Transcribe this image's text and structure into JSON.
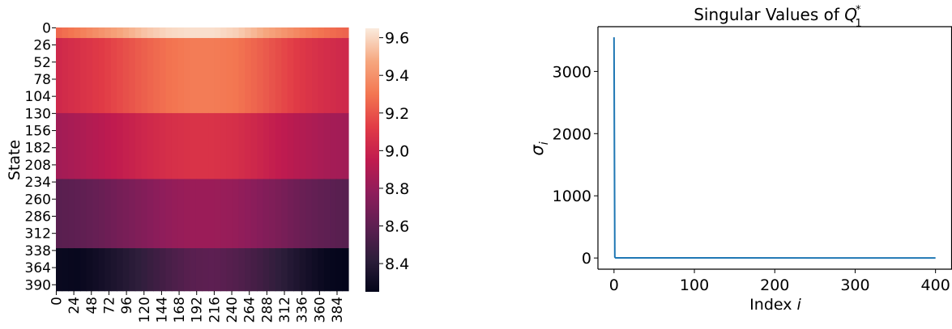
{
  "chart_data": [
    {
      "type": "heatmap",
      "ylabel": "State",
      "xlabel": "",
      "x_tick_labels": [
        "0",
        "24",
        "48",
        "72",
        "96",
        "120",
        "144",
        "168",
        "192",
        "216",
        "240",
        "264",
        "288",
        "312",
        "336",
        "360",
        "384"
      ],
      "y_tick_labels": [
        "0",
        "26",
        "52",
        "78",
        "104",
        "130",
        "156",
        "182",
        "208",
        "234",
        "260",
        "286",
        "312",
        "338",
        "364",
        "390"
      ],
      "n_rows": 400,
      "n_cols": 400,
      "row_bands": [
        {
          "start": 0,
          "end": 16,
          "profile": [
            9.25,
            9.32,
            9.4,
            9.48,
            9.55,
            9.6,
            9.62,
            9.62,
            9.58,
            9.5,
            9.42,
            9.34,
            9.28,
            9.24
          ]
        },
        {
          "start": 16,
          "end": 130,
          "profile": [
            9.02,
            9.07,
            9.12,
            9.18,
            9.24,
            9.29,
            9.32,
            9.32,
            9.3,
            9.24,
            9.17,
            9.1,
            9.05,
            9.02
          ]
        },
        {
          "start": 130,
          "end": 230,
          "profile": [
            8.84,
            8.88,
            8.92,
            8.97,
            9.02,
            9.06,
            9.08,
            9.08,
            9.06,
            9.01,
            8.95,
            8.9,
            8.86,
            8.84
          ]
        },
        {
          "start": 230,
          "end": 335,
          "profile": [
            8.58,
            8.6,
            8.64,
            8.69,
            8.74,
            8.79,
            8.82,
            8.82,
            8.8,
            8.75,
            8.7,
            8.64,
            8.6,
            8.57
          ]
        },
        {
          "start": 335,
          "end": 400,
          "profile": [
            8.28,
            8.27,
            8.32,
            8.38,
            8.45,
            8.52,
            8.58,
            8.6,
            8.56,
            8.5,
            8.42,
            8.34,
            8.27,
            8.25
          ]
        }
      ],
      "colorbar": {
        "min": 8.25,
        "max": 9.65,
        "ticks": [
          "8.4",
          "8.6",
          "8.8",
          "9.0",
          "9.2",
          "9.4",
          "9.6"
        ],
        "colormap": "rocket",
        "stops": [
          "#03051a",
          "#2e1e3b",
          "#5e1f52",
          "#8e1d5b",
          "#c01b4f",
          "#e13b46",
          "#f37651",
          "#f6a77f",
          "#faebdd"
        ]
      }
    },
    {
      "type": "line",
      "title_prefix": "Singular Values of ",
      "title_symbol": "Q",
      "title_sub": "1",
      "title_sup": "*",
      "xlabel": "Index ",
      "xlabel_var": "i",
      "ylabel_symbol": "σ",
      "ylabel_sub": "i",
      "xlim": [
        -20,
        420
      ],
      "ylim": [
        -180,
        3720
      ],
      "x_ticks": [
        "0",
        "100",
        "200",
        "300",
        "400"
      ],
      "y_ticks": [
        "0",
        "1000",
        "2000",
        "3000"
      ],
      "series": [
        {
          "color": "#1f77b4",
          "x": [
            0,
            1,
            2,
            400
          ],
          "y": [
            3550,
            15,
            2,
            0
          ]
        }
      ]
    }
  ]
}
